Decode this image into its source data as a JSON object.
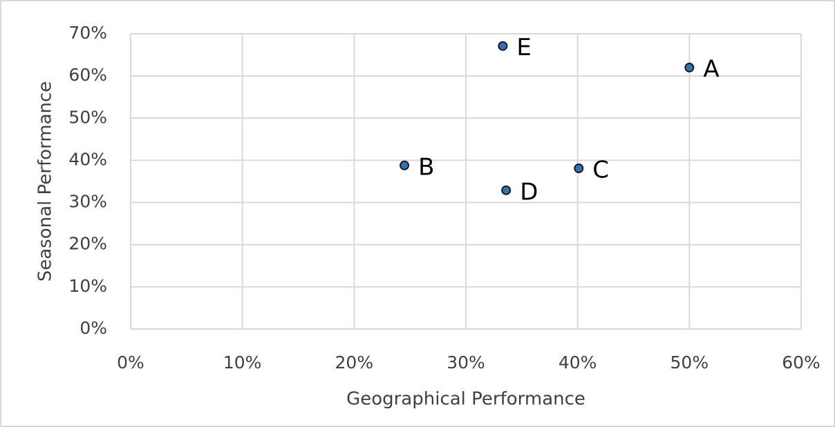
{
  "chart_data": {
    "type": "scatter",
    "x_label": "Geographical Performance",
    "y_label": "Seasonal Performance",
    "x": [
      50,
      24.5,
      40.1,
      33.6,
      33.3
    ],
    "y": [
      62,
      38.8,
      38.1,
      32.9,
      67.1
    ],
    "labels": [
      "A",
      "B",
      "C",
      "D",
      "E"
    ],
    "color": "#2e75b6",
    "xlim": [
      0,
      60
    ],
    "xticks": [
      {
        "value": 0,
        "label": "0%"
      },
      {
        "value": 10,
        "label": "10%"
      },
      {
        "value": 20,
        "label": "20%"
      },
      {
        "value": 30,
        "label": "30%"
      },
      {
        "value": 40,
        "label": "40%"
      },
      {
        "value": 50,
        "label": "50%"
      },
      {
        "value": 60,
        "label": "60%"
      }
    ],
    "ylim": [
      0,
      70
    ],
    "yticks": [
      {
        "value": 0,
        "label": "0%"
      },
      {
        "value": 10,
        "label": "10%"
      },
      {
        "value": 20,
        "label": "20%"
      },
      {
        "value": 30,
        "label": "30%"
      },
      {
        "value": 40,
        "label": "40%"
      },
      {
        "value": 50,
        "label": "50%"
      },
      {
        "value": 60,
        "label": "60%"
      },
      {
        "value": 70,
        "label": "70%"
      }
    ],
    "grid": true
  }
}
